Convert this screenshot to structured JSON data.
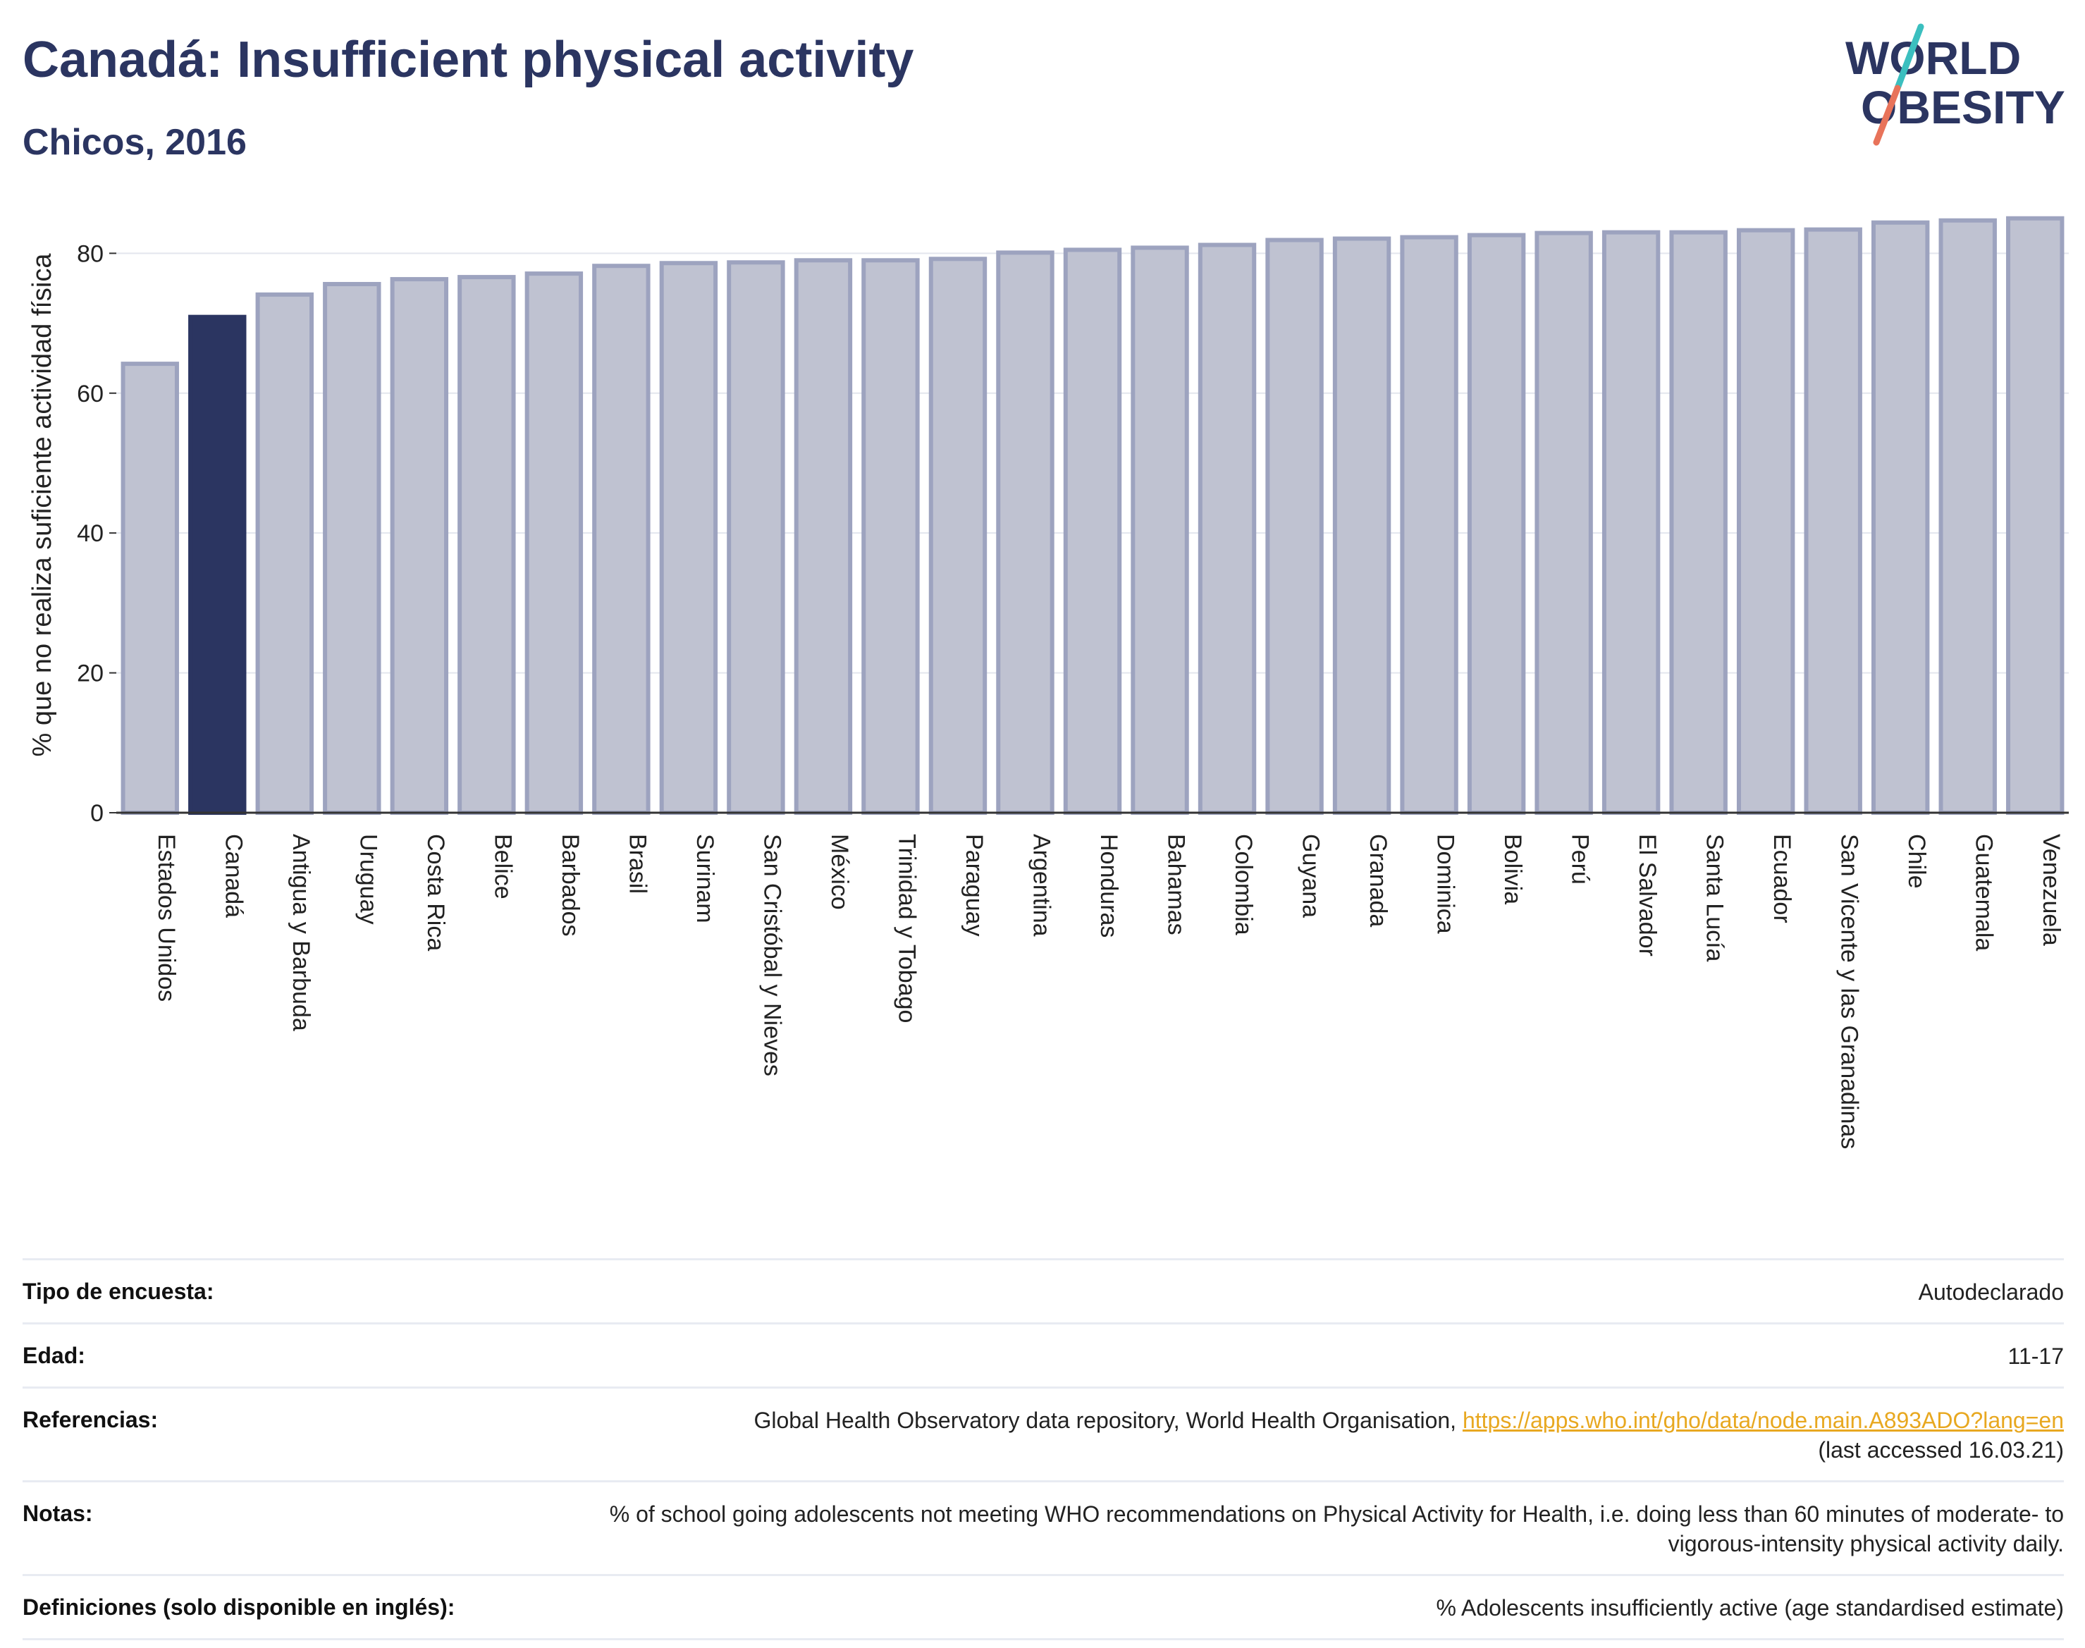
{
  "header": {
    "title": "Canadá: Insufficient physical activity",
    "subtitle": "Chicos, 2016"
  },
  "logo": {
    "line1": "WORLD",
    "line2": "OBESITY",
    "colors": {
      "text": "#2b3561",
      "slash_top": "#3bbfbf",
      "slash_bottom": "#e8735a"
    }
  },
  "chart_data": {
    "type": "bar",
    "ylabel": "% que no realiza suficiente actividad física",
    "xlabel": "",
    "ylim": [
      0,
      88
    ],
    "yticks": [
      0,
      20,
      40,
      60,
      80
    ],
    "grid": true,
    "highlight": "Canadá",
    "colors": {
      "bar": "#bfc2d1",
      "bar_edge": "#9da3bf",
      "highlight": "#2b3561",
      "grid": "#e3e6ee",
      "axis": "#333333"
    },
    "categories": [
      "Estados Unidos",
      "Canadá",
      "Antigua y Barbuda",
      "Uruguay",
      "Costa Rica",
      "Belice",
      "Barbados",
      "Brasil",
      "Surinam",
      "San Cristóbal y Nieves",
      "México",
      "Trinidad y Tobago",
      "Paraguay",
      "Argentina",
      "Honduras",
      "Bahamas",
      "Colombia",
      "Guyana",
      "Granada",
      "Dominica",
      "Bolivia",
      "Perú",
      "El Salvador",
      "Santa Lucía",
      "Ecuador",
      "San Vicente y las Granadinas",
      "Chile",
      "Guatemala",
      "Venezuela"
    ],
    "values": [
      64.2,
      70.9,
      74.1,
      75.6,
      76.3,
      76.6,
      77.1,
      78.2,
      78.6,
      78.7,
      79.0,
      79.0,
      79.2,
      80.1,
      80.5,
      80.8,
      81.2,
      81.9,
      82.1,
      82.3,
      82.6,
      82.9,
      83.0,
      83.0,
      83.3,
      83.4,
      84.4,
      84.7,
      85.0
    ]
  },
  "meta": {
    "survey_label": "Tipo de encuesta:",
    "survey_value": "Autodeclarado",
    "age_label": "Edad:",
    "age_value": "11-17",
    "ref_label": "Referencias:",
    "ref_text": "Global Health Observatory data repository, World Health Organisation, ",
    "ref_link": "https://apps.who.int/gho/data/node.main.A893ADO?lang=en",
    "ref_accessed": "(last accessed 16.03.21)",
    "notes_label": "Notas:",
    "notes_value": "% of school going adolescents not meeting WHO recommendations on Physical Activity for Health, i.e. doing less than 60 minutes of moderate- to vigorous-intensity physical activity daily.",
    "def_label": "Definiciones (solo disponible en inglés):",
    "def_value": "% Adolescents insufficiently active (age standardised estimate)"
  }
}
